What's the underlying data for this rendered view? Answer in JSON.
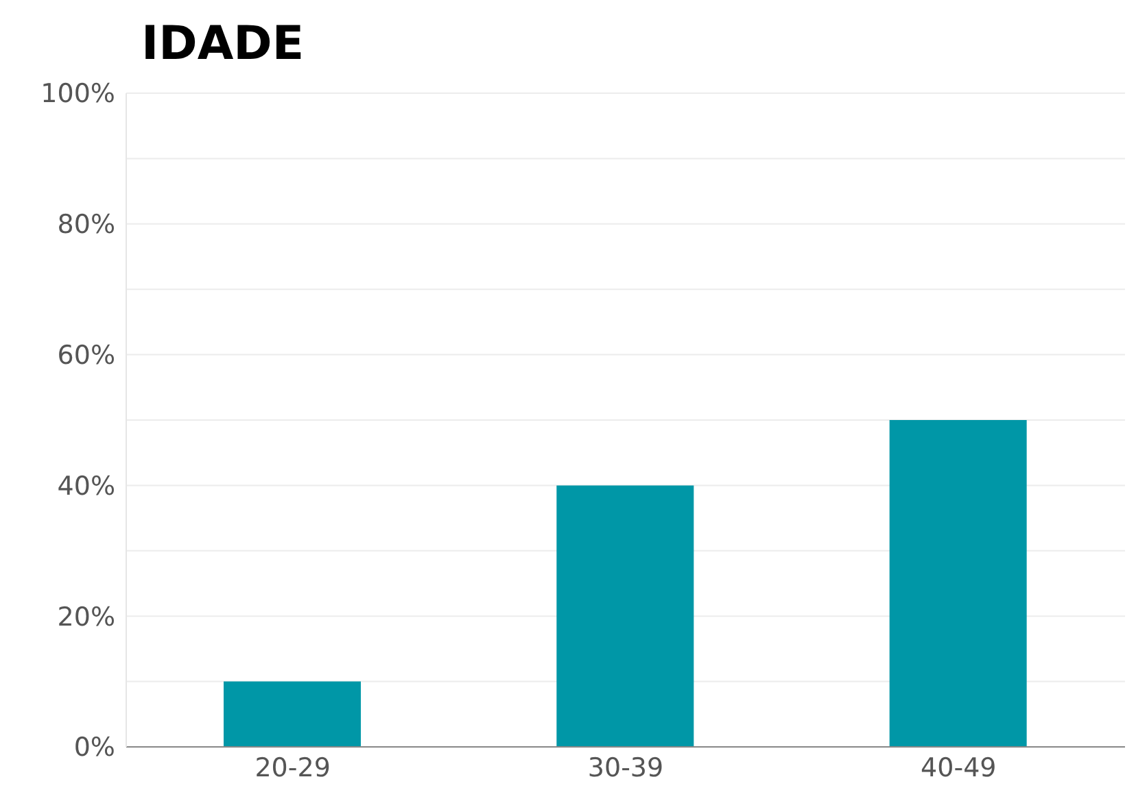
{
  "chart_data": {
    "type": "bar",
    "title": "IDADE",
    "categories": [
      "20-29",
      "30-39",
      "40-49"
    ],
    "values": [
      10,
      40,
      50
    ],
    "color": "#0097a7",
    "ylim": [
      0,
      100
    ],
    "yticks": [
      {
        "value": 0,
        "label": "0%"
      },
      {
        "value": 10,
        "label": null
      },
      {
        "value": 20,
        "label": "20%"
      },
      {
        "value": 30,
        "label": null
      },
      {
        "value": 40,
        "label": "40%"
      },
      {
        "value": 50,
        "label": null
      },
      {
        "value": 60,
        "label": "60%"
      },
      {
        "value": 70,
        "label": null
      },
      {
        "value": 80,
        "label": "80%"
      },
      {
        "value": 90,
        "label": null
      },
      {
        "value": 100,
        "label": "100%"
      }
    ],
    "grid": "y"
  }
}
